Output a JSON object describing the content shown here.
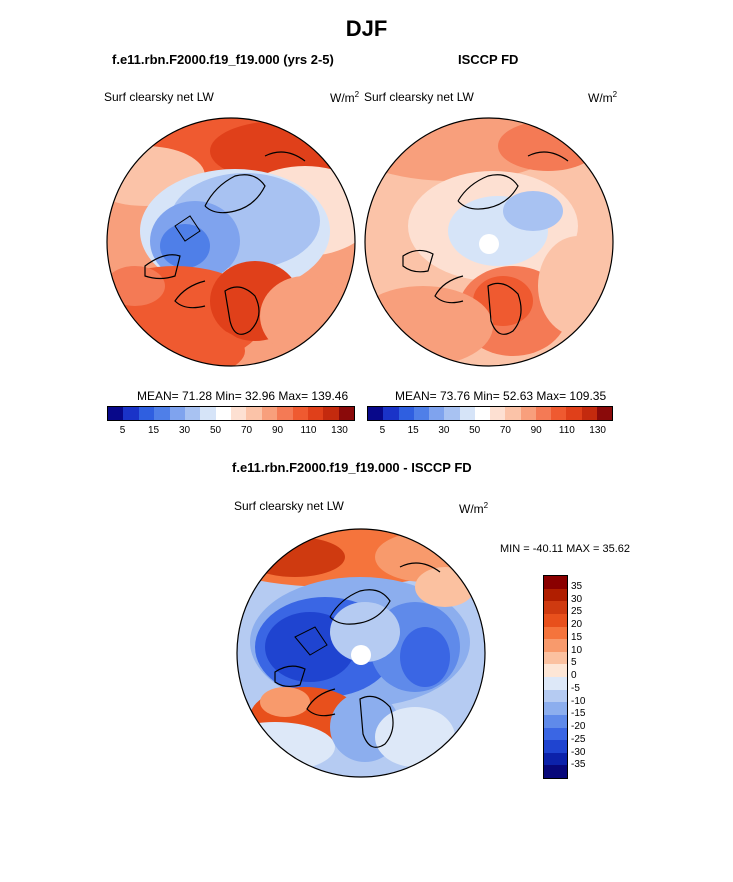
{
  "title": "DJF",
  "panels": {
    "model": {
      "title": "f.e11.rbn.F2000.f19_f19.000 (yrs 2-5)",
      "field": "Surf clearsky net LW",
      "unit_base": "W/m",
      "unit_exp": "2",
      "stats": "MEAN=  71.28  Min=  32.96  Max= 139.46"
    },
    "obs": {
      "title": "ISCCP FD",
      "field": "Surf clearsky net LW",
      "unit_base": "W/m",
      "unit_exp": "2",
      "stats": "MEAN=  73.76  Min=  52.63  Max= 109.35"
    },
    "diff": {
      "title": "f.e11.rbn.F2000.f19_f19.000 - ISCCP FD",
      "field": "Surf clearsky net LW",
      "unit_base": "W/m",
      "unit_exp": "2",
      "minmax": "MIN = -40.11 MAX =  35.62"
    }
  },
  "chart_data": [
    {
      "type": "heatmap",
      "projection": "north-polar-stereographic",
      "title": "f.e11.rbn.F2000.f19_f19.000 (yrs 2-5)",
      "field": "Surf clearsky net LW",
      "units": "W/m2",
      "mean": 71.28,
      "min": 32.96,
      "max": 139.46,
      "colorbar_ticks": [
        "5",
        "15",
        "30",
        "50",
        "70",
        "90",
        "110",
        "130"
      ]
    },
    {
      "type": "heatmap",
      "projection": "north-polar-stereographic",
      "title": "ISCCP FD",
      "field": "Surf clearsky net LW",
      "units": "W/m2",
      "mean": 73.76,
      "min": 52.63,
      "max": 109.35,
      "colorbar_ticks": [
        "5",
        "15",
        "30",
        "50",
        "70",
        "90",
        "110",
        "130"
      ]
    },
    {
      "type": "heatmap",
      "projection": "north-polar-stereographic",
      "title": "f.e11.rbn.F2000.f19_f19.000 - ISCCP FD",
      "field": "Surf clearsky net LW",
      "units": "W/m2",
      "min": -40.11,
      "max": 35.62,
      "colorbar_ticks": [
        "35",
        "30",
        "25",
        "20",
        "15",
        "10",
        "5",
        "0",
        "-5",
        "-10",
        "-15",
        "-20",
        "-25",
        "-30",
        "-35"
      ]
    }
  ],
  "colors": {
    "abs_scale": [
      "#08088a",
      "#1a33c8",
      "#2f5fe0",
      "#4f7fe8",
      "#7fa3ee",
      "#a8c2f2",
      "#d6e4f8",
      "#ffffff",
      "#fde0d2",
      "#fbc3a8",
      "#f89f7c",
      "#f47a55",
      "#ef5a30",
      "#e0401a",
      "#c42a0e",
      "#8a0a0a"
    ],
    "diff_scale": [
      "#8a0000",
      "#b01e00",
      "#cf3a10",
      "#e8501c",
      "#f5743c",
      "#f89a6c",
      "#fbc1a0",
      "#fde6d6",
      "#dde8f8",
      "#b5cbf2",
      "#8caeee",
      "#5f8aea",
      "#3a66e4",
      "#1f44d0",
      "#0c22aa",
      "#08087a"
    ]
  }
}
